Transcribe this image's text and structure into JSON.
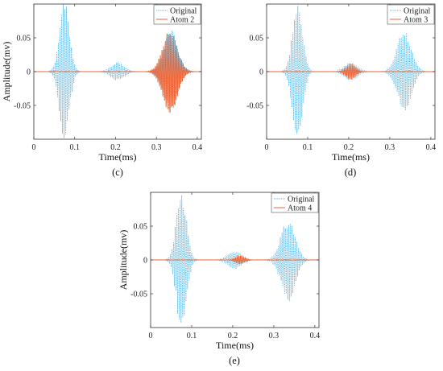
{
  "colors": {
    "original": "#5BB8E6",
    "atom": "#E8663A",
    "axis": "#333333"
  },
  "chart_data": [
    {
      "type": "line",
      "panel_label": "(c)",
      "xlabel": "Time(ms)",
      "ylabel": "Amplitude(mv)",
      "xlim": [
        0,
        0.41
      ],
      "ylim": [
        -0.1,
        0.1
      ],
      "xticks": [
        0,
        0.1,
        0.2,
        0.3,
        0.4
      ],
      "xtick_labels": [
        "0",
        "0.1",
        "0.2",
        "0.3",
        "0.4"
      ],
      "yticks": [
        0.05,
        0,
        -0.05
      ],
      "ytick_labels": [
        "0.05",
        "0",
        "-0.05"
      ],
      "legend_position": "top-right",
      "series": [
        {
          "name": "Original",
          "style": "dotted",
          "bursts": [
            {
              "center": 0.075,
              "amp": 0.095,
              "width": 0.012
            },
            {
              "center": 0.205,
              "amp": 0.012,
              "width": 0.016
            },
            {
              "center": 0.335,
              "amp": 0.055,
              "width": 0.017
            }
          ]
        },
        {
          "name": "Atom 2",
          "style": "solid",
          "bursts": [
            {
              "center": 0.333,
              "amp": 0.055,
              "width": 0.018
            }
          ]
        }
      ]
    },
    {
      "type": "line",
      "panel_label": "(d)",
      "xlabel": "Time(ms)",
      "ylabel": "",
      "xlim": [
        0,
        0.41
      ],
      "ylim": [
        -0.1,
        0.1
      ],
      "xticks": [
        0,
        0.1,
        0.2,
        0.3,
        0.4
      ],
      "xtick_labels": [
        "0",
        "0.1",
        "0.2",
        "0.3",
        "0.4"
      ],
      "yticks": [
        0.05,
        0,
        -0.05
      ],
      "ytick_labels": [
        "0.05",
        "0",
        "-0.05"
      ],
      "legend_position": "top-right",
      "series": [
        {
          "name": "Original",
          "style": "dotted",
          "bursts": [
            {
              "center": 0.075,
              "amp": 0.095,
              "width": 0.012
            },
            {
              "center": 0.205,
              "amp": 0.012,
              "width": 0.016
            },
            {
              "center": 0.335,
              "amp": 0.055,
              "width": 0.017
            }
          ]
        },
        {
          "name": "Atom 3",
          "style": "solid",
          "bursts": [
            {
              "center": 0.205,
              "amp": 0.011,
              "width": 0.012
            }
          ]
        }
      ]
    },
    {
      "type": "line",
      "panel_label": "(e)",
      "xlabel": "Time(ms)",
      "ylabel": "Amplitude(mv)",
      "xlim": [
        0,
        0.41
      ],
      "ylim": [
        -0.1,
        0.1
      ],
      "xticks": [
        0,
        0.1,
        0.2,
        0.3,
        0.4
      ],
      "xtick_labels": [
        "0",
        "0.1",
        "0.2",
        "0.3",
        "0.4"
      ],
      "yticks": [
        0.05,
        0,
        -0.05
      ],
      "ytick_labels": [
        "0.05",
        "0",
        "-0.05"
      ],
      "legend_position": "top-right",
      "series": [
        {
          "name": "Original",
          "style": "dotted",
          "bursts": [
            {
              "center": 0.075,
              "amp": 0.095,
              "width": 0.012
            },
            {
              "center": 0.205,
              "amp": 0.012,
              "width": 0.016
            },
            {
              "center": 0.335,
              "amp": 0.055,
              "width": 0.017
            }
          ]
        },
        {
          "name": "Atom 4",
          "style": "solid",
          "bursts": [
            {
              "center": 0.218,
              "amp": 0.006,
              "width": 0.011
            }
          ]
        }
      ]
    }
  ]
}
